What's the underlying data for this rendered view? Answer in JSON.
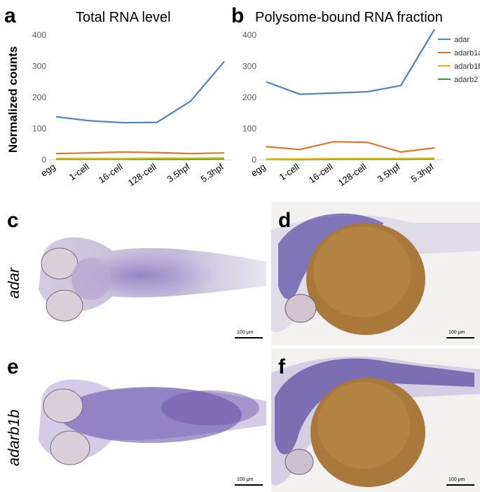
{
  "panels": {
    "a": "a",
    "b": "b",
    "c": "c",
    "d": "d",
    "e": "e",
    "f": "f"
  },
  "ylabel": "Normalized counts",
  "gene_labels": {
    "row1": "adar",
    "row2": "adarb1b"
  },
  "scalebar_text": "100 μm",
  "colors": {
    "adar": "#4f81bd",
    "adarb1a": "#e07428",
    "adarb1b": "#f2b400",
    "adarb2": "#2ca02c",
    "axis": "#d9d9d9",
    "tick_text": "#595959",
    "stain": "#5a3f9a",
    "yolk": "#a77a3c"
  },
  "chart_data": [
    {
      "type": "line",
      "title": "Total RNA level",
      "categories": [
        "egg",
        "1-cell",
        "16-cell",
        "128-cell",
        "3.5hpf",
        "5.3hpf"
      ],
      "ylim": [
        0,
        400
      ],
      "yticks": [
        "0",
        "100",
        "200",
        "300",
        "400"
      ],
      "grid": false,
      "series": [
        {
          "name": "adar",
          "values": [
            138,
            125,
            119,
            120,
            188,
            315
          ]
        },
        {
          "name": "adarb1a",
          "values": [
            20,
            22,
            25,
            23,
            20,
            22
          ]
        },
        {
          "name": "adarb1b",
          "values": [
            4,
            4,
            4,
            5,
            5,
            6
          ]
        },
        {
          "name": "adarb2",
          "values": [
            2,
            2,
            2,
            2,
            2,
            3
          ]
        }
      ]
    },
    {
      "type": "line",
      "title": "Polysome-bound RNA fraction",
      "categories": [
        "egg",
        "1-cell",
        "16-cell",
        "128-cell",
        "3.5hpf",
        "5.3hpf"
      ],
      "ylim": [
        0,
        400
      ],
      "yticks": [
        "0",
        "100",
        "200",
        "300",
        "400"
      ],
      "grid": false,
      "legend_position": "top-right",
      "series": [
        {
          "name": "adar",
          "values": [
            250,
            210,
            214,
            218,
            238,
            405
          ]
        },
        {
          "name": "adarb1a",
          "values": [
            42,
            33,
            58,
            56,
            25,
            38
          ]
        },
        {
          "name": "adarb1b",
          "values": [
            3,
            3,
            4,
            4,
            4,
            5
          ]
        },
        {
          "name": "adarb2",
          "values": [
            2,
            1,
            2,
            2,
            2,
            3
          ]
        }
      ]
    }
  ]
}
